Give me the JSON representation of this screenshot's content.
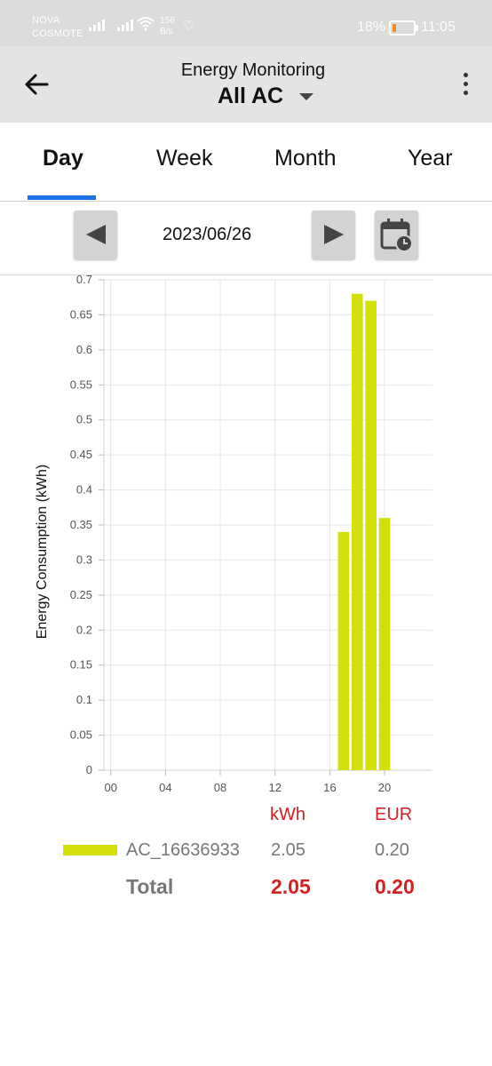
{
  "status_bar": {
    "carrier_line1": "NOVA",
    "carrier_line2": "COSMOTE",
    "speed_value": "156",
    "speed_unit": "B/s",
    "battery_percent": "18%",
    "time": "11:05"
  },
  "app_bar": {
    "subtitle": "Energy Monitoring",
    "title": "All AC"
  },
  "tabs": [
    {
      "label": "Day",
      "active": true
    },
    {
      "label": "Week",
      "active": false
    },
    {
      "label": "Month",
      "active": false
    },
    {
      "label": "Year",
      "active": false
    }
  ],
  "date_nav": {
    "date": "2023/06/26"
  },
  "chart_data": {
    "type": "bar",
    "ylabel": "Energy Consumption (kWh)",
    "xlabel": "",
    "ylim": [
      0,
      0.7
    ],
    "yticks": [
      "0",
      "0.05",
      "0.1",
      "0.15",
      "0.2",
      "0.25",
      "0.3",
      "0.35",
      "0.4",
      "0.45",
      "0.5",
      "0.55",
      "0.6",
      "0.65",
      "0.7"
    ],
    "xlim": [
      -0.5,
      23.5
    ],
    "xticks": [
      "00",
      "04",
      "08",
      "12",
      "16",
      "20"
    ],
    "grid": true,
    "bar_color": "#d4e00a",
    "bars": [
      {
        "hour": 17,
        "value": 0.34
      },
      {
        "hour": 18,
        "value": 0.68
      },
      {
        "hour": 19,
        "value": 0.67
      },
      {
        "hour": 20,
        "value": 0.36
      }
    ]
  },
  "legend": {
    "unit_kwh": "kWh",
    "unit_eur": "EUR",
    "series_name": "AC_16636933",
    "series_kwh": "2.05",
    "series_eur": "0.20",
    "total_label": "Total",
    "total_kwh": "2.05",
    "total_eur": "0.20"
  }
}
